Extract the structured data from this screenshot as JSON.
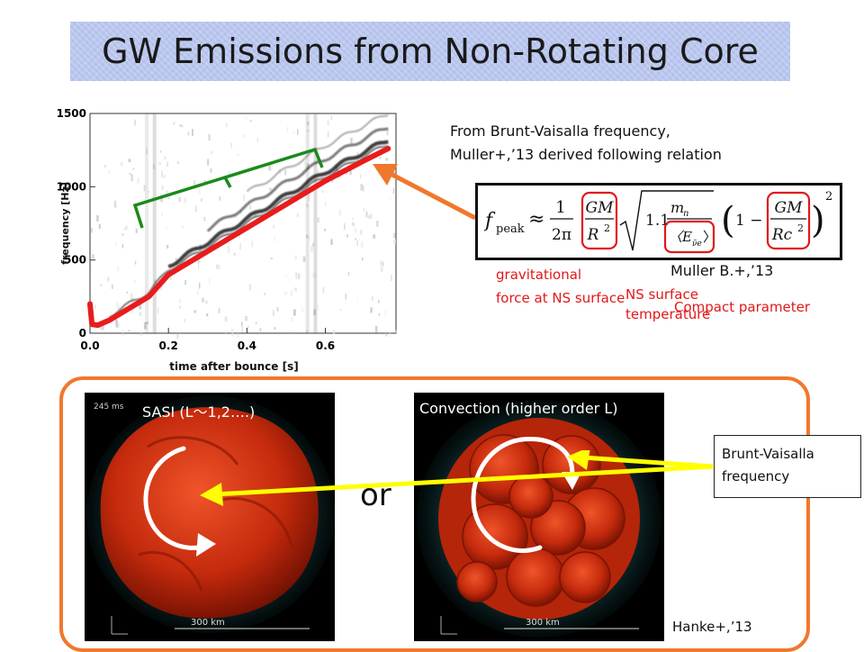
{
  "title": "GW Emissions from Non-Rotating Core",
  "intro": {
    "line1": "From Brunt-Vaisalla frequency,",
    "line2": "Muller+,’13 derived following relation"
  },
  "formula": {
    "lhs": "f",
    "lhs_sub": "peak",
    "approx": "≈",
    "one": "1",
    "two_pi": "2π",
    "gm": "GM",
    "r2": "R",
    "r2_exp": "2",
    "coef": "1.1",
    "m": "m",
    "m_sub": "n",
    "energy": "〈E",
    "energy_sub": "ν̄e",
    "energy_close": "〉",
    "one_minus": "1 −",
    "gm2": "GM",
    "rc2": "Rc",
    "rc2_exp": "2",
    "outer_exp": "2"
  },
  "citation_muller": "Muller B.+,’13",
  "annotations": {
    "grav_line1": "gravitational",
    "grav_line2": "force at NS surface",
    "temp_line1": "NS surface",
    "temp_line2": "temperature",
    "compact": "Compact parameter"
  },
  "chart": {
    "ylabel": "frequency [Hz]",
    "xlabel": "time after bounce [s]",
    "y_ticks": [
      "1500",
      "1000",
      "500",
      "0"
    ],
    "x_ticks": [
      "0.0",
      "0.2",
      "0.4",
      "0.6"
    ]
  },
  "chart_data": {
    "type": "heatmap",
    "xlabel": "time after bounce [s]",
    "ylabel": "frequency [Hz]",
    "xlim": [
      0,
      0.78
    ],
    "ylim": [
      0,
      1500
    ],
    "x_ticks": [
      0.0,
      0.2,
      0.4,
      0.6
    ],
    "y_ticks": [
      0,
      500,
      1000,
      1500
    ],
    "overlays": [
      {
        "kind": "red-fit-line",
        "color": "#e81c1c",
        "x": [
          0.0,
          0.005,
          0.02,
          0.05,
          0.1,
          0.15,
          0.2,
          0.3,
          0.4,
          0.5,
          0.6,
          0.7,
          0.76
        ],
        "y": [
          200,
          60,
          55,
          90,
          170,
          250,
          400,
          560,
          720,
          880,
          1040,
          1180,
          1260
        ]
      }
    ],
    "colors": {
      "ridge": "#111111",
      "fit": "#e81c1c",
      "bracket": "#1a8a1a",
      "arrow": "#f0782d"
    }
  },
  "panel": {
    "sasi_caption": "SASI (L〜1,2….)",
    "conv_caption": "Convection (higher order L)",
    "or_text": "or",
    "time_label": "245 ms",
    "scale_left": "300 km",
    "scale_right": "300 km",
    "bv_line1": "Brunt-Vaisalla",
    "bv_line2": "frequency",
    "hanke": "Hanke+,’13"
  }
}
